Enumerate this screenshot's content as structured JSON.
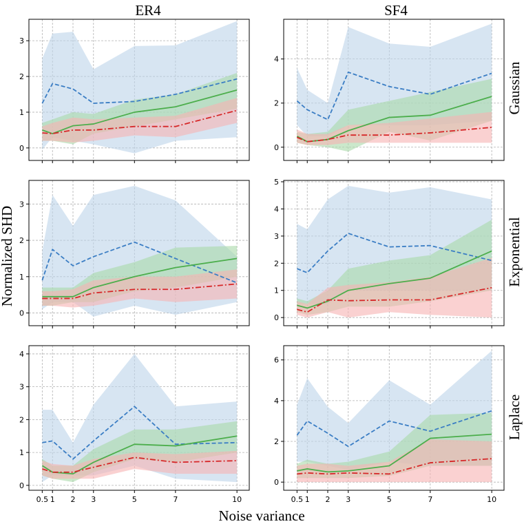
{
  "chart_data": {
    "type": "line",
    "xlabel": "Noise variance",
    "ylabel": "Normalized SHD",
    "x": [
      0.5,
      1,
      2,
      3,
      5,
      7,
      10
    ],
    "x_tick_labels": [
      "0.5",
      "1",
      "2",
      "3",
      "5",
      "7",
      "10"
    ],
    "column_titles": [
      "ER4",
      "SF4"
    ],
    "row_labels": [
      "Gaussian",
      "Exponential",
      "Laplace"
    ],
    "colors": {
      "blue": "#3a7dc4",
      "green": "#4cae4c",
      "red": "#d62728",
      "blue_band": "#bcd3ea",
      "green_band": "#a8d9a8",
      "red_band": "#f7b3b3"
    },
    "panels": [
      {
        "name": "ER4-Gaussian",
        "row": 0,
        "col": 0,
        "ylim": [
          -0.35,
          3.6
        ],
        "yticks": [
          0,
          1,
          2,
          3
        ],
        "series": [
          {
            "color": "blue",
            "style": "dashed",
            "values": [
              1.25,
              1.8,
              1.65,
              1.25,
              1.3,
              1.5,
              1.93
            ],
            "lower": [
              -0.05,
              0.3,
              0.2,
              0.1,
              -0.15,
              0.2,
              0.3
            ],
            "upper": [
              2.5,
              3.2,
              3.25,
              2.2,
              2.85,
              2.87,
              3.55
            ]
          },
          {
            "color": "green",
            "style": "solid",
            "values": [
              0.5,
              0.4,
              0.62,
              0.67,
              1.0,
              1.15,
              1.62
            ],
            "lower": [
              0.2,
              0.2,
              0.1,
              0.4,
              0.6,
              0.8,
              1.1
            ],
            "upper": [
              0.7,
              0.8,
              1.0,
              0.95,
              1.35,
              1.5,
              2.1
            ]
          },
          {
            "color": "red",
            "style": "dashdot",
            "values": [
              0.42,
              0.4,
              0.5,
              0.5,
              0.6,
              0.6,
              1.05
            ],
            "lower": [
              0.2,
              0.2,
              0.15,
              0.2,
              0.35,
              0.3,
              0.7
            ],
            "upper": [
              0.6,
              0.7,
              0.85,
              0.8,
              0.85,
              0.9,
              1.4
            ]
          }
        ]
      },
      {
        "name": "SF4-Gaussian",
        "row": 0,
        "col": 1,
        "ylim": [
          -0.6,
          5.8
        ],
        "yticks": [
          0,
          2,
          4
        ],
        "series": [
          {
            "color": "blue",
            "style": "dashed",
            "values": [
              2.1,
              1.7,
              1.25,
              3.4,
              2.75,
              2.4,
              3.35
            ],
            "lower": [
              1.0,
              0.5,
              0.5,
              1.0,
              1.0,
              1.0,
              1.2
            ],
            "upper": [
              3.6,
              2.6,
              2.0,
              5.45,
              4.7,
              4.55,
              5.6
            ]
          },
          {
            "color": "green",
            "style": "solid",
            "values": [
              0.5,
              0.25,
              0.35,
              0.75,
              1.35,
              1.45,
              2.3
            ],
            "lower": [
              0.2,
              0.1,
              0.0,
              -0.2,
              0.7,
              0.3,
              1.2
            ],
            "upper": [
              0.7,
              0.6,
              0.7,
              1.7,
              2.1,
              2.5,
              3.1
            ]
          },
          {
            "color": "red",
            "style": "dashdot",
            "values": [
              0.45,
              0.25,
              0.35,
              0.55,
              0.55,
              0.65,
              0.9
            ],
            "lower": [
              0.2,
              0.1,
              0.1,
              0.2,
              0.2,
              0.2,
              0.2
            ],
            "upper": [
              0.8,
              0.6,
              0.6,
              1.0,
              1.1,
              1.3,
              1.6
            ]
          }
        ]
      },
      {
        "name": "ER4-Exponential",
        "row": 1,
        "col": 0,
        "ylim": [
          -0.35,
          3.65
        ],
        "yticks": [
          0,
          1,
          2,
          3
        ],
        "series": [
          {
            "color": "blue",
            "style": "dashed",
            "values": [
              0.9,
              1.75,
              1.3,
              1.55,
              1.95,
              1.5,
              0.83
            ],
            "lower": [
              0.1,
              0.3,
              0.3,
              -0.1,
              0.2,
              -0.05,
              0.3
            ],
            "upper": [
              1.7,
              3.25,
              2.4,
              3.25,
              3.5,
              3.1,
              1.55
            ]
          },
          {
            "color": "green",
            "style": "solid",
            "values": [
              0.45,
              0.45,
              0.45,
              0.7,
              1.0,
              1.25,
              1.5
            ],
            "lower": [
              0.2,
              0.2,
              0.3,
              0.3,
              0.6,
              0.7,
              1.0
            ],
            "upper": [
              0.7,
              0.7,
              0.7,
              1.1,
              1.4,
              1.8,
              1.85
            ]
          },
          {
            "color": "red",
            "style": "dashdot",
            "values": [
              0.4,
              0.4,
              0.4,
              0.55,
              0.65,
              0.65,
              0.8
            ],
            "lower": [
              0.2,
              0.2,
              0.15,
              0.2,
              0.4,
              0.3,
              0.4
            ],
            "upper": [
              0.6,
              0.6,
              0.65,
              0.9,
              1.0,
              1.0,
              1.2
            ]
          }
        ]
      },
      {
        "name": "SF4-Exponential",
        "row": 1,
        "col": 1,
        "ylim": [
          -0.3,
          5.05
        ],
        "yticks": [
          0,
          1,
          2,
          3,
          4,
          5
        ],
        "series": [
          {
            "color": "blue",
            "style": "dashed",
            "values": [
              1.8,
              1.65,
              2.45,
              3.1,
              2.6,
              2.65,
              2.1
            ],
            "lower": [
              0.5,
              0.5,
              0.5,
              1.0,
              1.0,
              1.0,
              1.0
            ],
            "upper": [
              3.45,
              3.25,
              4.35,
              4.85,
              4.6,
              4.8,
              4.35
            ]
          },
          {
            "color": "green",
            "style": "solid",
            "values": [
              0.45,
              0.35,
              0.6,
              1.0,
              1.25,
              1.45,
              2.45
            ],
            "lower": [
              0.2,
              0.1,
              0.2,
              0.4,
              0.4,
              0.6,
              1.0
            ],
            "upper": [
              0.7,
              0.6,
              1.0,
              1.8,
              2.1,
              2.3,
              3.6
            ]
          },
          {
            "color": "red",
            "style": "dashdot",
            "values": [
              0.3,
              0.2,
              0.65,
              0.62,
              0.65,
              0.65,
              1.1
            ],
            "lower": [
              0.1,
              0.0,
              0.2,
              0.0,
              0.2,
              0.1,
              0.0
            ],
            "upper": [
              0.6,
              0.5,
              1.1,
              1.2,
              1.3,
              1.5,
              2.2
            ]
          }
        ]
      },
      {
        "name": "ER4-Laplace",
        "row": 2,
        "col": 0,
        "ylim": [
          -0.15,
          4.25
        ],
        "yticks": [
          0,
          1,
          2,
          3,
          4
        ],
        "series": [
          {
            "color": "blue",
            "style": "dashed",
            "values": [
              1.3,
              1.35,
              0.8,
              1.35,
              2.4,
              1.25,
              1.3
            ],
            "lower": [
              0.1,
              0.3,
              0.3,
              0.3,
              0.6,
              0.2,
              0.1
            ],
            "upper": [
              2.3,
              2.3,
              1.3,
              2.45,
              4.0,
              2.4,
              2.55
            ]
          },
          {
            "color": "green",
            "style": "solid",
            "values": [
              0.6,
              0.4,
              0.35,
              0.7,
              1.25,
              1.2,
              1.5
            ],
            "lower": [
              0.3,
              0.2,
              0.1,
              0.4,
              0.8,
              0.7,
              1.0
            ],
            "upper": [
              0.8,
              0.6,
              0.6,
              1.1,
              1.7,
              1.7,
              1.95
            ]
          },
          {
            "color": "red",
            "style": "dashdot",
            "values": [
              0.5,
              0.4,
              0.4,
              0.55,
              0.85,
              0.7,
              0.75
            ],
            "lower": [
              0.3,
              0.2,
              0.2,
              0.2,
              0.5,
              0.35,
              0.35
            ],
            "upper": [
              0.75,
              0.65,
              0.6,
              0.8,
              1.0,
              0.95,
              1.05
            ]
          }
        ]
      },
      {
        "name": "SF4-Laplace",
        "row": 2,
        "col": 1,
        "ylim": [
          -0.4,
          6.7
        ],
        "yticks": [
          0,
          2,
          4,
          6
        ],
        "series": [
          {
            "color": "blue",
            "style": "dashed",
            "values": [
              2.3,
              3.0,
              2.4,
              1.75,
              3.0,
              2.5,
              3.5
            ],
            "lower": [
              1.0,
              1.0,
              0.8,
              0.6,
              1.0,
              0.8,
              0.8
            ],
            "upper": [
              3.8,
              5.1,
              3.7,
              2.9,
              5.0,
              3.8,
              6.45
            ]
          },
          {
            "color": "green",
            "style": "solid",
            "values": [
              0.55,
              0.65,
              0.5,
              0.55,
              0.8,
              2.15,
              2.35
            ],
            "lower": [
              0.2,
              0.2,
              0.2,
              0.2,
              0.3,
              0.8,
              0.8
            ],
            "upper": [
              0.9,
              1.1,
              0.9,
              1.0,
              1.5,
              3.3,
              3.4
            ]
          },
          {
            "color": "red",
            "style": "dashdot",
            "values": [
              0.4,
              0.45,
              0.4,
              0.45,
              0.4,
              0.95,
              1.15
            ],
            "lower": [
              0.0,
              0.0,
              0.0,
              0.0,
              0.0,
              0.0,
              0.0
            ],
            "upper": [
              0.8,
              0.9,
              0.9,
              0.8,
              1.0,
              2.1,
              2.0
            ]
          }
        ]
      }
    ]
  }
}
